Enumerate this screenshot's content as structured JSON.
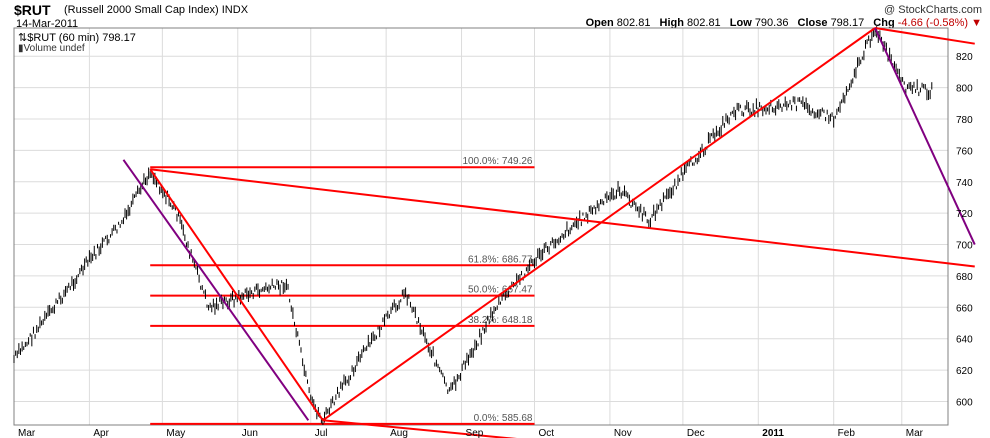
{
  "header": {
    "symbol": "$RUT",
    "name": "(Russell 2000 Small Cap Index)",
    "exchange": "INDX",
    "date": "14-Mar-2011",
    "site": "@ StockCharts.com",
    "open_label": "Open",
    "open": "802.81",
    "high_label": "High",
    "high": "802.81",
    "low_label": "Low",
    "low": "790.36",
    "close_label": "Close",
    "close": "798.17",
    "chg_label": "Chg",
    "chg": "-4.66 (-0.58%)"
  },
  "legend": {
    "series": "$RUT (60 min) 798.17",
    "volume": "Volume undef"
  },
  "chart_data": {
    "type": "line",
    "ylim": [
      585,
      838
    ],
    "yticks": [
      600,
      620,
      640,
      660,
      680,
      700,
      720,
      740,
      760,
      780,
      800,
      820
    ],
    "xlabels": [
      "Mar",
      "Apr",
      "May",
      "Jun",
      "Jul",
      "Aug",
      "Sep",
      "Oct",
      "Nov",
      "Dec",
      "2011",
      "Feb",
      "Mar"
    ],
    "x": [
      "2010-03-01",
      "2010-03-15",
      "2010-04-01",
      "2010-04-15",
      "2010-04-26",
      "2010-05-07",
      "2010-05-20",
      "2010-06-08",
      "2010-06-21",
      "2010-07-01",
      "2010-07-06",
      "2010-07-20",
      "2010-08-09",
      "2010-08-27",
      "2010-09-15",
      "2010-10-01",
      "2010-10-15",
      "2010-11-05",
      "2010-11-17",
      "2010-12-01",
      "2010-12-22",
      "2011-01-18",
      "2011-02-01",
      "2011-02-18",
      "2011-03-02",
      "2011-03-14"
    ],
    "close": [
      627,
      655,
      690,
      715,
      747,
      720,
      660,
      670,
      675,
      600,
      588,
      625,
      670,
      605,
      660,
      690,
      710,
      735,
      715,
      745,
      785,
      790,
      780,
      838,
      800,
      798
    ],
    "fib_levels": [
      {
        "label": "100.0%: 749.26",
        "value": 749.26
      },
      {
        "label": "61.8%: 686.77",
        "value": 686.77
      },
      {
        "label": "50.0%: 667.47",
        "value": 667.47
      },
      {
        "label": "38.2%: 648.18",
        "value": 648.18
      },
      {
        "label": "0.0%: 585.68",
        "value": 585.68
      }
    ],
    "colors": {
      "trendline": "#ff0000",
      "channel": "#800080",
      "price": "#000000"
    }
  }
}
